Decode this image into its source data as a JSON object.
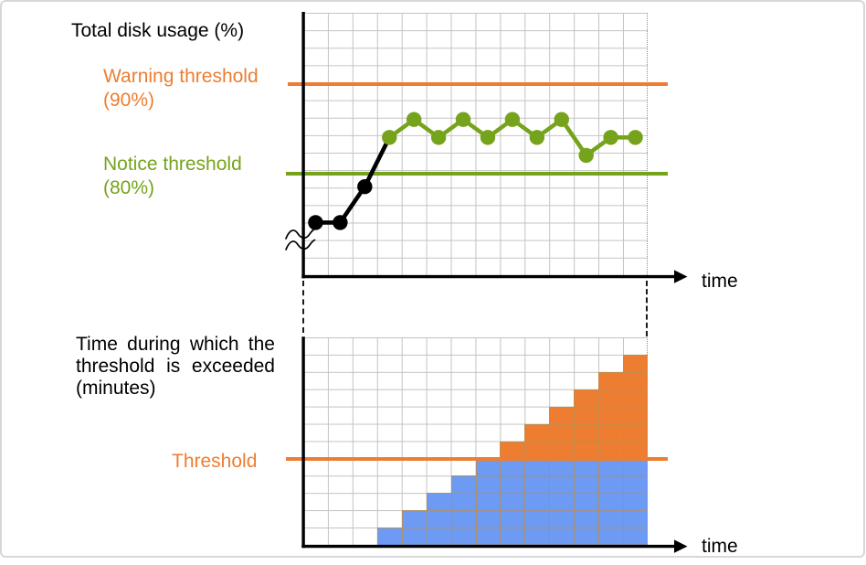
{
  "colors": {
    "orange": "#ED7D31",
    "green": "#76A31C",
    "blue": "#6D9AF2",
    "black": "#000000",
    "grid": "#C3C3C3",
    "bar_grid_line": "rgba(186,142,80,0.85)",
    "frame_border": "#D8D8D8"
  },
  "top_chart": {
    "title": "Total disk usage (%)",
    "warning_label": "Warning threshold\n(90%)",
    "notice_label": "Notice threshold\n(80%)",
    "time_label": "time"
  },
  "bottom_chart": {
    "title": "Time during which the threshold is exceeded (minutes)",
    "threshold_label": "Threshold",
    "time_label": "time"
  },
  "chart_data": [
    {
      "type": "line",
      "title": "Total disk usage (%)",
      "xlabel": "time",
      "ylabel": "Total disk usage (%)",
      "x": [
        1,
        2,
        3,
        4,
        5,
        6,
        7,
        8,
        9,
        10,
        11,
        12,
        13,
        14
      ],
      "series": [
        {
          "name": "disk-usage-percent",
          "values": [
            74.5,
            74.5,
            78.5,
            84,
            86,
            84,
            86,
            84,
            86,
            84,
            86,
            82,
            84,
            84
          ],
          "black_point_count": 3,
          "point_color_below_notice": "#000000",
          "point_color_above_notice": "#76A31C"
        }
      ],
      "thresholds": [
        {
          "name": "warning",
          "value": 90,
          "label": "Warning threshold (90%)",
          "color": "#ED7D31"
        },
        {
          "name": "notice",
          "value": 80,
          "label": "Notice threshold (80%)",
          "color": "#76A31C"
        }
      ],
      "y_axis_break": true,
      "grid": true,
      "legend": false
    },
    {
      "type": "bar",
      "title": "Time during which the threshold is exceeded (minutes)",
      "xlabel": "time",
      "x": [
        1,
        2,
        3,
        4,
        5,
        6,
        7,
        8,
        9,
        10,
        11,
        12,
        13,
        14
      ],
      "values_grid_cells": [
        0,
        0,
        0,
        1,
        2,
        3,
        4,
        5,
        6,
        7,
        8,
        9,
        10,
        11
      ],
      "threshold_grid_cells": 5,
      "threshold_label": "Threshold",
      "below_threshold_color": "#6D9AF2",
      "above_threshold_color": "#ED7D31",
      "grid": true,
      "legend": false
    }
  ]
}
